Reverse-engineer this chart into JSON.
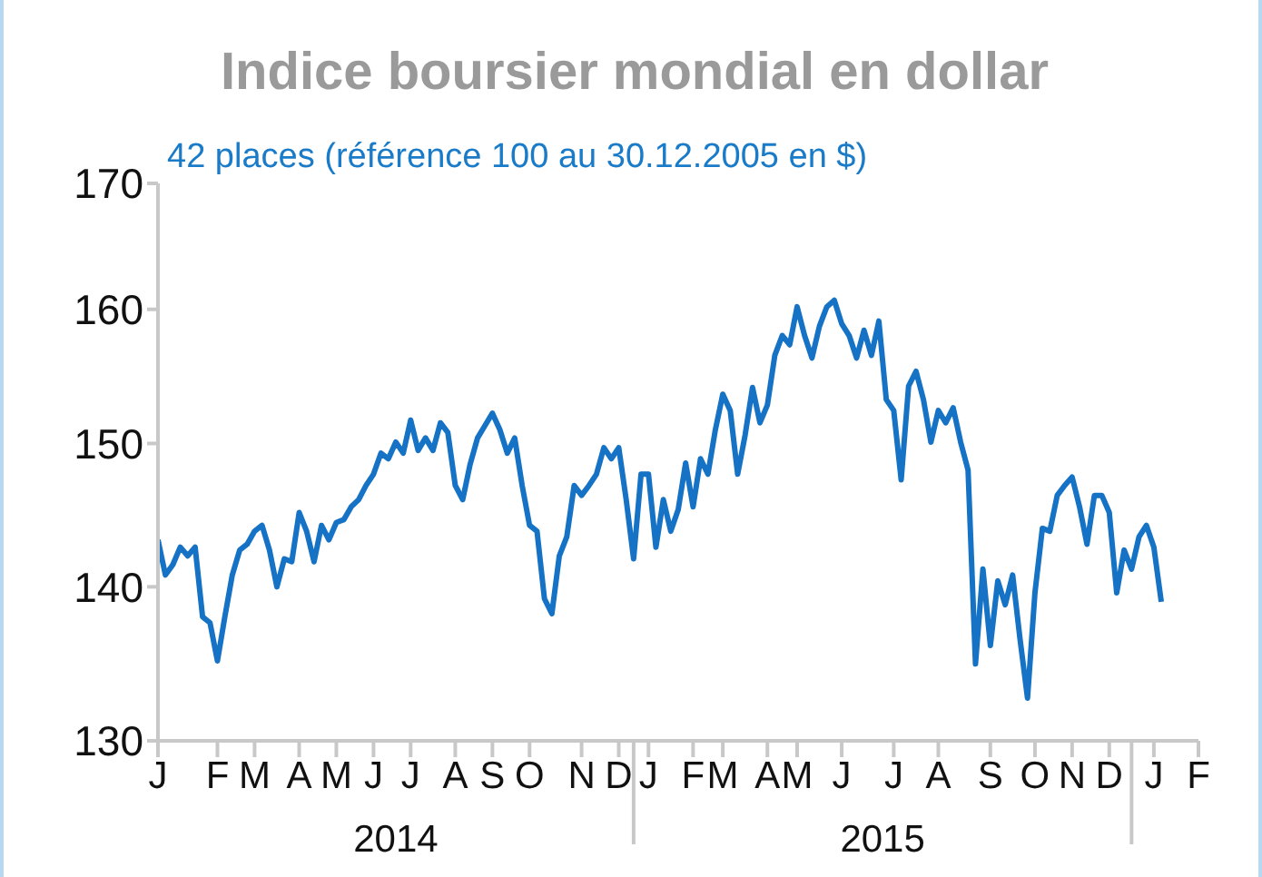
{
  "chart_data": {
    "type": "line",
    "title": "Indice boursier mondial en dollar",
    "subtitle": "42 places (référence 100 au 30.12.2005 en $)",
    "categories": [
      "J",
      null,
      null,
      null,
      null,
      null,
      null,
      null,
      "F",
      null,
      null,
      null,
      null,
      "M",
      null,
      null,
      null,
      null,
      null,
      "A",
      null,
      null,
      null,
      null,
      "M",
      null,
      null,
      null,
      null,
      "J",
      null,
      null,
      null,
      null,
      "J",
      null,
      null,
      null,
      null,
      null,
      "A",
      null,
      null,
      null,
      null,
      "S",
      null,
      null,
      null,
      null,
      "O",
      null,
      null,
      null,
      null,
      null,
      null,
      "N",
      null,
      null,
      null,
      null,
      "D",
      null,
      null,
      null,
      "J",
      null,
      null,
      null,
      null,
      null,
      "F",
      null,
      null,
      null,
      "M",
      null,
      null,
      null,
      null,
      null,
      "A",
      null,
      null,
      null,
      "M",
      null,
      null,
      null,
      null,
      null,
      "J",
      null,
      null,
      null,
      null,
      null,
      null,
      "J",
      null,
      null,
      null,
      null,
      null,
      "A",
      null,
      null,
      null,
      null,
      null,
      null,
      "S",
      null,
      null,
      null,
      null,
      null,
      "O",
      null,
      null,
      null,
      null,
      "N",
      null,
      null,
      null,
      null,
      "D",
      null,
      null,
      null,
      null,
      null,
      "J",
      null,
      null,
      null,
      null,
      null,
      "F"
    ],
    "series": [
      {
        "color": "#1572c4",
        "values": [
          143.2,
          140.8,
          141.5,
          142.7,
          142.1,
          142.7,
          138.0,
          137.6,
          135.1,
          138.0,
          140.8,
          142.5,
          142.9,
          143.8,
          144.2,
          142.5,
          140.0,
          141.9,
          141.7,
          145.1,
          143.8,
          141.7,
          144.2,
          143.2,
          144.4,
          144.6,
          145.5,
          146.0,
          147.0,
          147.8,
          149.3,
          148.9,
          150.1,
          149.3,
          151.7,
          149.5,
          150.4,
          149.5,
          151.5,
          150.8,
          147.0,
          146.0,
          148.5,
          150.4,
          151.3,
          152.2,
          151.0,
          149.3,
          150.4,
          147.0,
          144.2,
          143.8,
          139.2,
          138.2,
          142.1,
          143.4,
          147.0,
          146.3,
          147.0,
          147.8,
          149.7,
          148.9,
          149.7,
          146.0,
          141.9,
          147.8,
          147.8,
          142.7,
          146.0,
          143.8,
          145.3,
          148.6,
          145.5,
          148.9,
          147.8,
          151.0,
          153.6,
          152.4,
          147.8,
          150.6,
          154.1,
          151.5,
          152.8,
          156.5,
          158.0,
          157.3,
          160.2,
          158.0,
          156.3,
          158.7,
          160.2,
          160.7,
          158.9,
          158.0,
          156.3,
          158.4,
          156.5,
          159.1,
          153.2,
          152.4,
          147.4,
          154.2,
          155.3,
          153.2,
          150.1,
          152.4,
          151.5,
          152.6,
          150.1,
          148.1,
          134.9,
          141.2,
          136.1,
          140.4,
          138.8,
          140.8,
          136.5,
          132.7,
          139.6,
          144.0,
          143.8,
          146.3,
          147.0,
          147.6,
          145.5,
          142.9,
          146.3,
          146.3,
          145.1,
          139.6,
          142.5,
          141.2,
          143.4,
          144.2,
          142.7,
          139.0,
          null,
          null,
          null,
          null,
          null
        ]
      }
    ],
    "annotations": [
      "2014",
      "2015"
    ],
    "ylim": [
      130,
      170
    ],
    "yticks": [
      130,
      140,
      150,
      160,
      170
    ],
    "log": true,
    "grid": false,
    "legend": false,
    "marker": "none",
    "line_style": "solid"
  }
}
